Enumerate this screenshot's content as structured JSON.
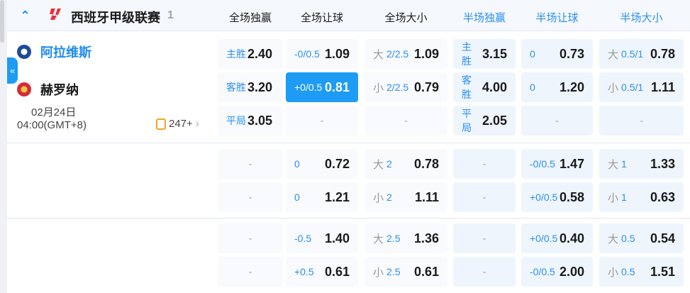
{
  "league": {
    "name": "西班牙甲级联赛",
    "count": "1",
    "logo": "laliga-logo"
  },
  "columns": [
    {
      "label": "全场独赢",
      "color": "#1a1a1a"
    },
    {
      "label": "全场让球",
      "color": "#1a1a1a"
    },
    {
      "label": "全场大小",
      "color": "#1a1a1a"
    },
    {
      "label": "半场独赢",
      "color": "#2a8ff0"
    },
    {
      "label": "半场让球",
      "color": "#2a8ff0"
    },
    {
      "label": "半场大小",
      "color": "#2a8ff0"
    }
  ],
  "match": {
    "home": "阿拉维斯",
    "away": "赫罗纳",
    "date": "02月24日",
    "time": "04:00(GMT+8)",
    "more_markets": "247+"
  },
  "sidebar_toggle": "«",
  "colors": {
    "accent": "#1e9bf5",
    "home_team": "#1e8cf0"
  },
  "markets": [
    [
      [
        {
          "pre": "",
          "line": "主胜",
          "odds": "2.40"
        },
        {
          "pre": "",
          "line": "-0/0.5",
          "odds": "1.09"
        },
        {
          "pre": "大",
          "line": "2/2.5",
          "odds": "1.09"
        },
        {
          "pre": "",
          "line": "主胜",
          "odds": "3.15"
        },
        {
          "pre": "",
          "line": "0",
          "odds": "0.73"
        },
        {
          "pre": "大",
          "line": "0.5/1",
          "odds": "0.78"
        }
      ],
      [
        {
          "pre": "",
          "line": "客胜",
          "odds": "3.20"
        },
        {
          "pre": "",
          "line": "+0/0.5",
          "odds": "0.81",
          "selected": true
        },
        {
          "pre": "小",
          "line": "2/2.5",
          "odds": "0.79"
        },
        {
          "pre": "",
          "line": "客胜",
          "odds": "4.00"
        },
        {
          "pre": "",
          "line": "0",
          "odds": "1.20"
        },
        {
          "pre": "小",
          "line": "0.5/1",
          "odds": "1.11"
        }
      ],
      [
        {
          "pre": "",
          "line": "平局",
          "odds": "3.05"
        },
        null,
        null,
        {
          "pre": "",
          "line": "平局",
          "odds": "2.05"
        },
        null,
        null
      ]
    ],
    [
      [
        null,
        {
          "pre": "",
          "line": "0",
          "odds": "0.72"
        },
        {
          "pre": "大",
          "line": "2",
          "odds": "0.78"
        },
        null,
        {
          "pre": "",
          "line": "-0/0.5",
          "odds": "1.47"
        },
        {
          "pre": "大",
          "line": "1",
          "odds": "1.33"
        }
      ],
      [
        null,
        {
          "pre": "",
          "line": "0",
          "odds": "1.21"
        },
        {
          "pre": "小",
          "line": "2",
          "odds": "1.11"
        },
        null,
        {
          "pre": "",
          "line": "+0/0.5",
          "odds": "0.58"
        },
        {
          "pre": "小",
          "line": "1",
          "odds": "0.63"
        }
      ]
    ],
    [
      [
        null,
        {
          "pre": "",
          "line": "-0.5",
          "odds": "1.40"
        },
        {
          "pre": "大",
          "line": "2.5",
          "odds": "1.36"
        },
        null,
        {
          "pre": "",
          "line": "+0/0.5",
          "odds": "0.40"
        },
        {
          "pre": "大",
          "line": "0.5",
          "odds": "0.54"
        }
      ],
      [
        null,
        {
          "pre": "",
          "line": "+0.5",
          "odds": "0.61"
        },
        {
          "pre": "小",
          "line": "2.5",
          "odds": "0.61"
        },
        null,
        {
          "pre": "",
          "line": "-0/0.5",
          "odds": "2.00"
        },
        {
          "pre": "小",
          "line": "0.5",
          "odds": "1.51"
        }
      ]
    ]
  ],
  "empty": "-"
}
